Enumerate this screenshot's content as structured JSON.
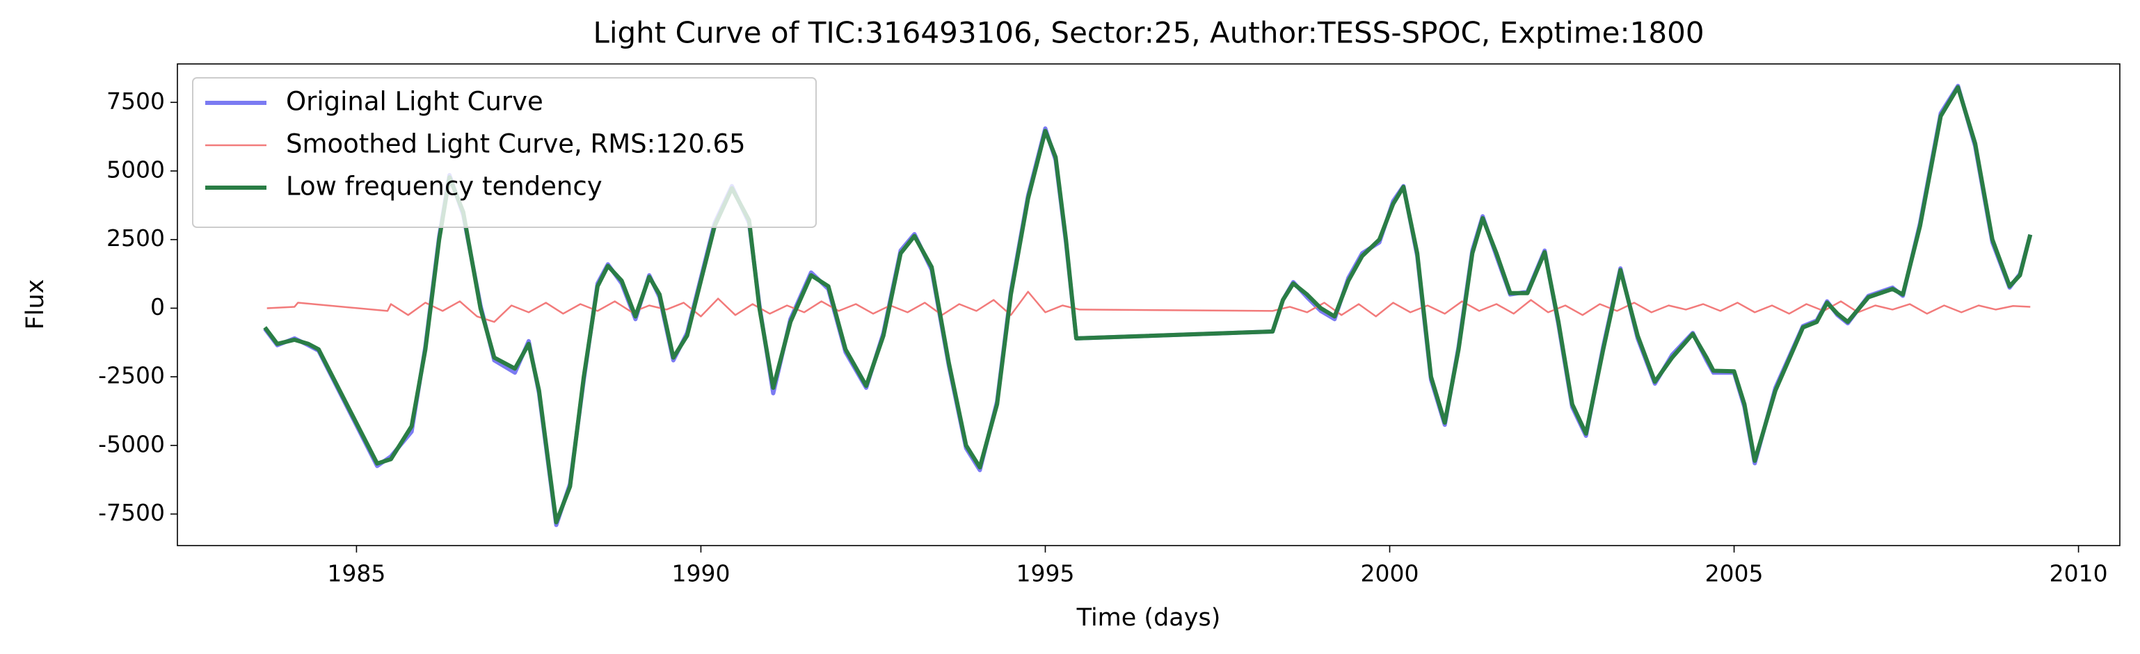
{
  "chart_data": {
    "type": "line",
    "title": "Light Curve of TIC:316493106, Sector:25, Author:TESS-SPOC, Exptime:1800",
    "x_label": "Time (days)",
    "y_label": "Flux",
    "xlim": [
      1982.4,
      2010.6
    ],
    "ylim": [
      -8650,
      8900
    ],
    "xticks": [
      1985,
      1990,
      1995,
      2000,
      2005,
      2010
    ],
    "yticks": [
      -7500,
      -5000,
      -2500,
      0,
      2500,
      5000,
      7500
    ],
    "grid": false,
    "legend": "upper left",
    "series": [
      {
        "name": "Original Light Curve",
        "color": "#7b7bf2",
        "width": 6,
        "x": [
          1983.67,
          1983.85,
          1984.1,
          1984.3,
          1984.45,
          1985.3,
          1985.5,
          1985.8,
          1986.0,
          1986.2,
          1986.35,
          1986.55,
          1986.8,
          1987.0,
          1987.3,
          1987.5,
          1987.65,
          1987.9,
          1988.1,
          1988.3,
          1988.5,
          1988.65,
          1988.85,
          1989.05,
          1989.25,
          1989.4,
          1989.6,
          1989.8,
          1990.0,
          1990.2,
          1990.45,
          1990.7,
          1990.85,
          1991.05,
          1991.3,
          1991.6,
          1991.85,
          1992.1,
          1992.4,
          1992.65,
          1992.9,
          1993.1,
          1993.35,
          1993.6,
          1993.85,
          1994.05,
          1994.3,
          1994.5,
          1994.75,
          1995.0,
          1995.15,
          1995.3,
          1995.45,
          1998.3,
          1998.45,
          1998.6,
          1998.8,
          1999.0,
          1999.2,
          1999.4,
          1999.6,
          1999.85,
          2000.05,
          2000.2,
          2000.4,
          2000.6,
          2000.8,
          2001.0,
          2001.2,
          2001.35,
          2001.55,
          2001.75,
          2002.0,
          2002.25,
          2002.45,
          2002.65,
          2002.85,
          2003.1,
          2003.35,
          2003.6,
          2003.85,
          2004.1,
          2004.4,
          2004.6,
          2004.7,
          2005.0,
          2005.15,
          2005.3,
          2005.6,
          2006.0,
          2006.2,
          2006.35,
          2006.5,
          2006.65,
          2006.95,
          2007.3,
          2007.45,
          2007.7,
          2008.0,
          2008.25,
          2008.5,
          2008.75,
          2009.0,
          2009.15,
          2009.3
        ],
        "values": [
          -750,
          -1350,
          -1100,
          -1350,
          -1550,
          -5750,
          -5400,
          -4500,
          -1400,
          2600,
          4850,
          3400,
          100,
          -1900,
          -2350,
          -1200,
          -3100,
          -7900,
          -6400,
          -2600,
          900,
          1600,
          900,
          -400,
          1200,
          400,
          -1900,
          -900,
          1100,
          3100,
          4450,
          3100,
          100,
          -3100,
          -400,
          1300,
          700,
          -1600,
          -2900,
          -900,
          2100,
          2700,
          1400,
          -2100,
          -5100,
          -5900,
          -3400,
          600,
          4100,
          6550,
          5400,
          2400,
          -1100,
          -850,
          300,
          950,
          400,
          -100,
          -400,
          1100,
          2000,
          2400,
          3900,
          4450,
          1900,
          -2600,
          -4250,
          -1400,
          2100,
          3350,
          1900,
          500,
          600,
          2100,
          -600,
          -3600,
          -4650,
          -1400,
          1450,
          -1100,
          -2750,
          -1700,
          -900,
          -1900,
          -2350,
          -2350,
          -3600,
          -5650,
          -2900,
          -650,
          -450,
          250,
          -250,
          -550,
          450,
          750,
          450,
          3100,
          7100,
          8100,
          5900,
          2400,
          750,
          1250,
          2680
        ]
      },
      {
        "name": "Smoothed Light Curve, RMS:120.65",
        "color": "#f27b7b",
        "width": 2.5,
        "x": [
          1983.7,
          1984.1,
          1984.15,
          1985.45,
          1985.5,
          1985.75,
          1986,
          1986.25,
          1986.5,
          1986.75,
          1987,
          1987.25,
          1987.5,
          1987.75,
          1988,
          1988.25,
          1988.5,
          1988.75,
          1989,
          1989.25,
          1989.5,
          1989.75,
          1990,
          1990.25,
          1990.5,
          1990.75,
          1991,
          1991.25,
          1991.5,
          1991.75,
          1992,
          1992.25,
          1992.5,
          1992.75,
          1993,
          1993.25,
          1993.5,
          1993.75,
          1994,
          1994.25,
          1994.5,
          1994.75,
          1995,
          1995.25,
          1995.5,
          1998.3,
          1998.55,
          1998.8,
          1999.05,
          1999.3,
          1999.55,
          1999.8,
          2000.05,
          2000.3,
          2000.55,
          2000.8,
          2001.05,
          2001.3,
          2001.55,
          2001.8,
          2002.05,
          2002.3,
          2002.55,
          2002.8,
          2003.05,
          2003.3,
          2003.55,
          2003.8,
          2004.05,
          2004.3,
          2004.55,
          2004.8,
          2005.05,
          2005.3,
          2005.55,
          2005.8,
          2006.05,
          2006.3,
          2006.55,
          2006.8,
          2007.05,
          2007.3,
          2007.55,
          2007.8,
          2008.05,
          2008.3,
          2008.55,
          2008.8,
          2009.05,
          2009.3
        ],
        "values": [
          0,
          50,
          200,
          -100,
          150,
          -250,
          200,
          -100,
          250,
          -300,
          -500,
          100,
          -150,
          200,
          -200,
          150,
          -100,
          250,
          -150,
          100,
          -50,
          200,
          -300,
          350,
          -250,
          150,
          -200,
          100,
          -150,
          250,
          -100,
          150,
          -200,
          100,
          -150,
          200,
          -250,
          150,
          -100,
          300,
          -250,
          600,
          -150,
          100,
          -50,
          -100,
          50,
          -150,
          200,
          -250,
          150,
          -300,
          200,
          -150,
          100,
          -200,
          250,
          -100,
          150,
          -200,
          300,
          -150,
          100,
          -250,
          150,
          -100,
          200,
          -150,
          100,
          -50,
          150,
          -100,
          200,
          -150,
          100,
          -200,
          150,
          -100,
          250,
          -150,
          100,
          -50,
          150,
          -200,
          100,
          -150,
          100,
          -50,
          80,
          50
        ]
      },
      {
        "name": "Low frequency tendency",
        "color": "#2a7d45",
        "width": 6,
        "x": [
          1983.67,
          1983.85,
          1984.1,
          1984.3,
          1984.45,
          1985.3,
          1985.5,
          1985.8,
          1986.0,
          1986.2,
          1986.35,
          1986.55,
          1986.8,
          1987.0,
          1987.3,
          1987.5,
          1987.65,
          1987.9,
          1988.1,
          1988.3,
          1988.5,
          1988.65,
          1988.85,
          1989.05,
          1989.25,
          1989.4,
          1989.6,
          1989.8,
          1990.0,
          1990.2,
          1990.45,
          1990.7,
          1990.85,
          1991.05,
          1991.3,
          1991.6,
          1991.85,
          1992.1,
          1992.4,
          1992.65,
          1992.9,
          1993.1,
          1993.35,
          1993.6,
          1993.85,
          1994.05,
          1994.3,
          1994.5,
          1994.75,
          1995.0,
          1995.15,
          1995.3,
          1995.45,
          1998.3,
          1998.45,
          1998.6,
          1998.8,
          1999.0,
          1999.2,
          1999.4,
          1999.6,
          1999.85,
          2000.05,
          2000.2,
          2000.4,
          2000.6,
          2000.8,
          2001.0,
          2001.2,
          2001.35,
          2001.55,
          2001.75,
          2002.0,
          2002.25,
          2002.45,
          2002.65,
          2002.85,
          2003.1,
          2003.35,
          2003.6,
          2003.85,
          2004.1,
          2004.4,
          2004.6,
          2004.7,
          2005.0,
          2005.15,
          2005.3,
          2005.6,
          2006.0,
          2006.2,
          2006.35,
          2006.5,
          2006.65,
          2006.95,
          2007.3,
          2007.45,
          2007.7,
          2008.0,
          2008.25,
          2008.5,
          2008.75,
          2009.0,
          2009.15,
          2009.3
        ],
        "values": [
          -700,
          -1300,
          -1150,
          -1300,
          -1500,
          -5660,
          -5500,
          -4300,
          -1500,
          2500,
          4770,
          3500,
          0,
          -1800,
          -2200,
          -1300,
          -3000,
          -7800,
          -6500,
          -2500,
          800,
          1540,
          1000,
          -300,
          1140,
          500,
          -1800,
          -1000,
          1000,
          3000,
          4370,
          3200,
          0,
          -2900,
          -500,
          1200,
          800,
          -1500,
          -2830,
          -1000,
          2000,
          2630,
          1500,
          -2000,
          -5000,
          -5800,
          -3500,
          500,
          4000,
          6460,
          5500,
          2500,
          -1100,
          -850,
          300,
          900,
          500,
          0,
          -300,
          1000,
          1900,
          2500,
          3800,
          4420,
          2000,
          -2500,
          -4170,
          -1500,
          2000,
          3280,
          2000,
          550,
          550,
          2040,
          -500,
          -3500,
          -4570,
          -1500,
          1390,
          -1000,
          -2680,
          -1800,
          -940,
          -1800,
          -2280,
          -2300,
          -3500,
          -5560,
          -3000,
          -700,
          -500,
          200,
          -200,
          -500,
          400,
          700,
          500,
          3000,
          7000,
          8050,
          6000,
          2500,
          800,
          1200,
          2680
        ]
      }
    ]
  }
}
